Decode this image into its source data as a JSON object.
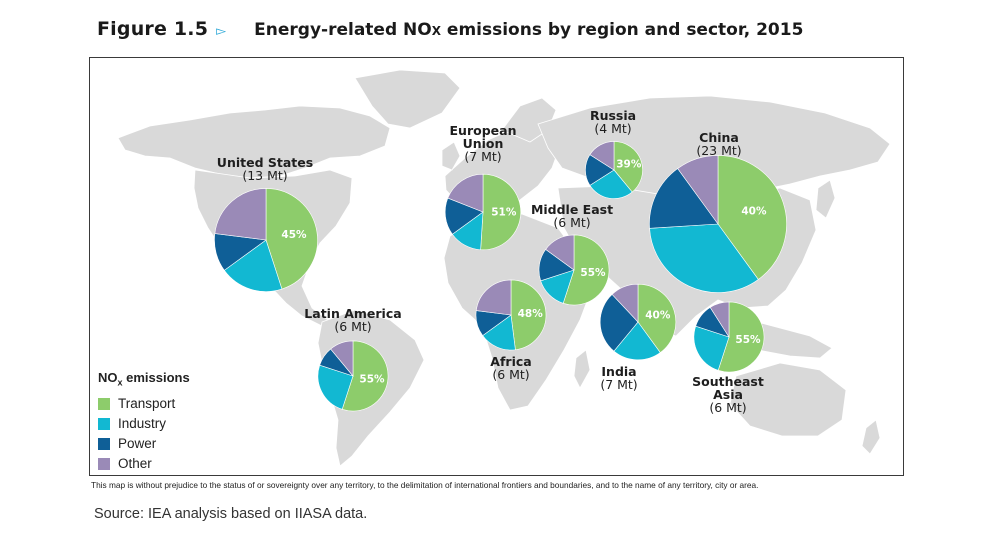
{
  "figure": {
    "number": "Figure 1.5",
    "title_prefix": "Energy-related NO",
    "title_sub": "X",
    "title_suffix": " emissions by region and sector, 2015",
    "arrow_icon": "triangle-right-outline-icon"
  },
  "disclaimer": "This map is without prejudice to the status of or sovereignty over any territory, to the delimitation of international frontiers and boundaries, and to the name of any territory, city or area.",
  "source": "Source:  IEA analysis based on IIASA data.",
  "colors": {
    "transport": "#8dcc6b",
    "industry": "#12b8d2",
    "power": "#0f5f97",
    "other": "#9a8ab7",
    "land": "#d9d9d9",
    "border": "#ffffff"
  },
  "chart_data": {
    "type": "pie",
    "legend": {
      "title": "NO",
      "title_sub": "x",
      "title_suffix": " emissions",
      "placement": "bottom-left",
      "items": [
        "Transport",
        "Industry",
        "Power",
        "Other"
      ]
    },
    "sectors": [
      "Transport",
      "Industry",
      "Power",
      "Other"
    ],
    "regions": [
      {
        "name_lines": [
          "United States"
        ],
        "total": "(13 Mt)",
        "total_mt": 13,
        "shares": [
          0.45,
          0.2,
          0.12,
          0.23
        ],
        "label": "45%"
      },
      {
        "name_lines": [
          "Latin America"
        ],
        "total": "(6 Mt)",
        "total_mt": 6,
        "shares": [
          0.55,
          0.25,
          0.09,
          0.11
        ],
        "label": "55%"
      },
      {
        "name_lines": [
          "European",
          "Union"
        ],
        "total": "(7 Mt)",
        "total_mt": 7,
        "shares": [
          0.51,
          0.14,
          0.16,
          0.19
        ],
        "label": "51%"
      },
      {
        "name_lines": [
          "Russia"
        ],
        "total": "(4 Mt)",
        "total_mt": 4,
        "shares": [
          0.39,
          0.27,
          0.18,
          0.16
        ],
        "label": "39%"
      },
      {
        "name_lines": [
          "Middle East"
        ],
        "total": "(6 Mt)",
        "total_mt": 6,
        "shares": [
          0.55,
          0.15,
          0.15,
          0.15
        ],
        "label": "55%"
      },
      {
        "name_lines": [
          "Africa"
        ],
        "total": "(6 Mt)",
        "total_mt": 6,
        "shares": [
          0.48,
          0.17,
          0.12,
          0.23
        ],
        "label": "48%"
      },
      {
        "name_lines": [
          "China"
        ],
        "total": "(23 Mt)",
        "total_mt": 23,
        "shares": [
          0.4,
          0.34,
          0.16,
          0.1
        ],
        "label": "40%"
      },
      {
        "name_lines": [
          "India"
        ],
        "total": "(7 Mt)",
        "total_mt": 7,
        "shares": [
          0.4,
          0.21,
          0.27,
          0.12
        ],
        "label": "40%"
      },
      {
        "name_lines": [
          "Southeast",
          "Asia"
        ],
        "total": "(6 Mt)",
        "total_mt": 6,
        "shares": [
          0.55,
          0.25,
          0.11,
          0.09
        ],
        "label": "55%"
      }
    ]
  }
}
